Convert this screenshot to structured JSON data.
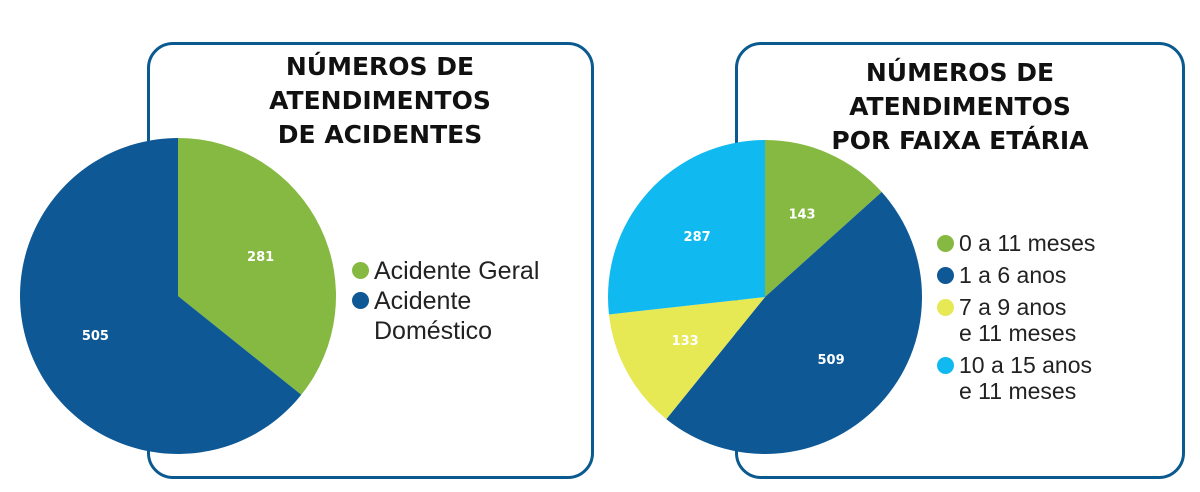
{
  "colors": {
    "green": "#86b941",
    "blue": "#0e5896",
    "yellow": "#e6e854",
    "cyan": "#10b9ef",
    "border": "#0a5a8f"
  },
  "chart_data": [
    {
      "type": "pie",
      "title": "NÚMEROS DE\nATENDIMENTOS\nDE ACIDENTES",
      "slices": [
        {
          "label": "Acidente Geral",
          "value": 281,
          "color": "#86b941"
        },
        {
          "label": "Acidente\nDoméstico",
          "value": 505,
          "color": "#0e5896"
        }
      ],
      "legend": "right"
    },
    {
      "type": "pie",
      "title": "NÚMEROS DE\nATENDIMENTOS\nPOR FAIXA ETÁRIA",
      "slices": [
        {
          "label": "0 a 11 meses",
          "value": 143,
          "color": "#86b941"
        },
        {
          "label": "1 a 6 anos",
          "value": 509,
          "color": "#0e5896"
        },
        {
          "label": "7 a 9 anos\ne 11 meses",
          "value": 133,
          "color": "#e6e854"
        },
        {
          "label": "10 a 15 anos\ne 11 meses",
          "value": 287,
          "color": "#10b9ef"
        }
      ],
      "legend": "right"
    }
  ]
}
